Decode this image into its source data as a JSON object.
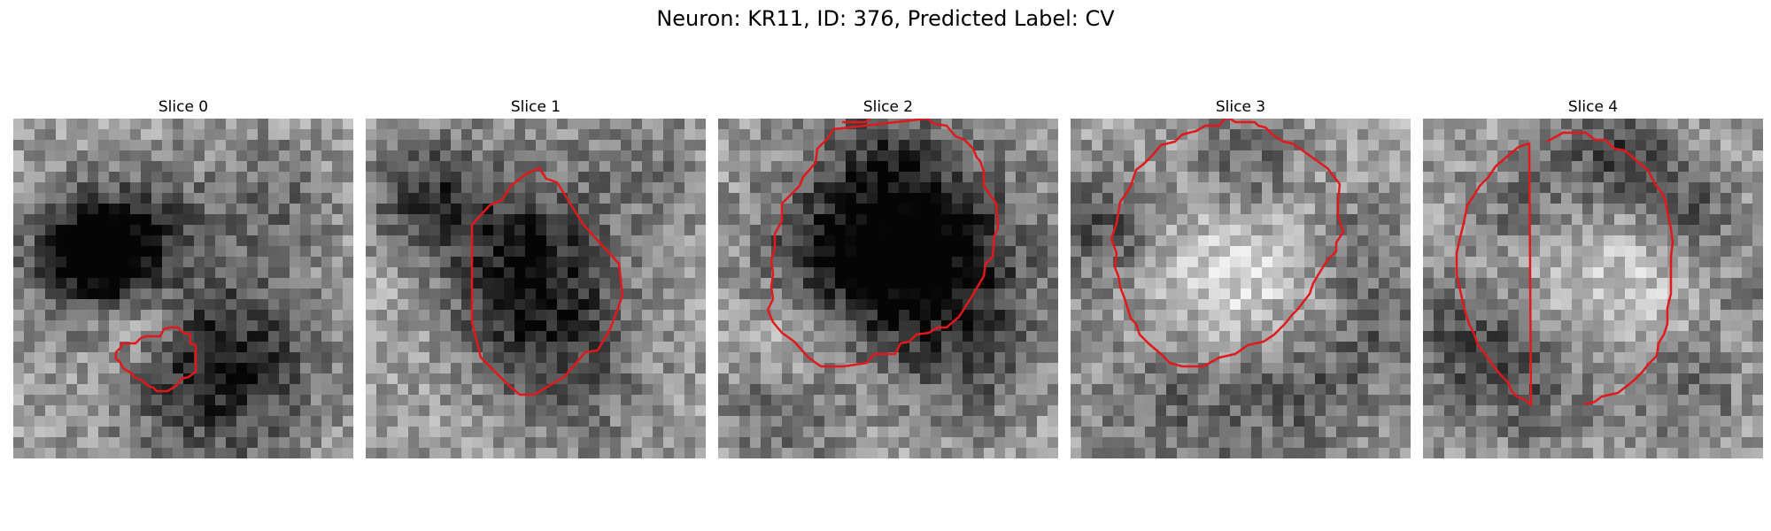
{
  "figure": {
    "title": "Neuron: KR11, ID: 376, Predicted Label: CV",
    "colormap": "gray",
    "contour_color": "#e0191c"
  },
  "panels": [
    {
      "title": "Slice 0",
      "icon": "microscopy-slice-image"
    },
    {
      "title": "Slice 1",
      "icon": "microscopy-slice-image"
    },
    {
      "title": "Slice 2",
      "icon": "microscopy-slice-image"
    },
    {
      "title": "Slice 3",
      "icon": "microscopy-slice-image"
    },
    {
      "title": "Slice 4",
      "icon": "microscopy-slice-image"
    }
  ]
}
